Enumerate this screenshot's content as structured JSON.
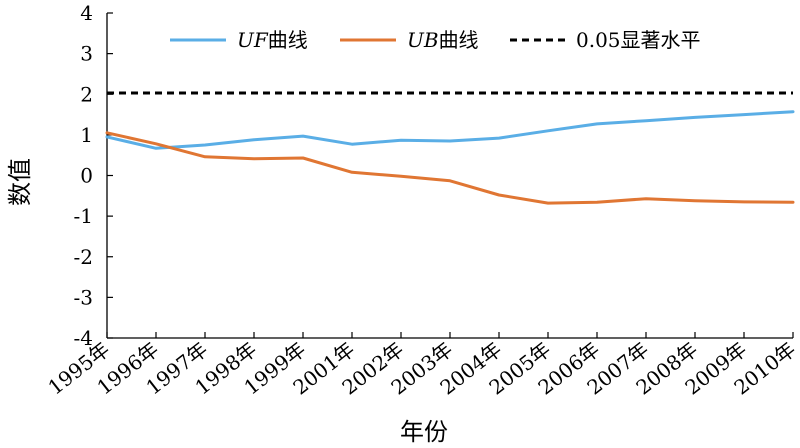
{
  "chart_data": {
    "type": "line",
    "title": "",
    "xlabel": "年份",
    "ylabel": "数值",
    "ylim": [
      -4,
      4
    ],
    "yticks": [
      "4",
      "3",
      "2",
      "1",
      "0",
      "-1",
      "-2",
      "-3",
      "-4"
    ],
    "categories": [
      "1995年",
      "1996年",
      "1997年",
      "1998年",
      "1999年",
      "2001年",
      "2002年",
      "2003年",
      "2004年",
      "2005年",
      "2006年",
      "2007年",
      "2008年",
      "2009年",
      "2010年"
    ],
    "series": [
      {
        "name": "UF曲线",
        "name_italic": "UF",
        "name_rest": "曲线",
        "color": "#5aaee6",
        "style": "solid",
        "values": [
          0.95,
          0.67,
          0.75,
          0.88,
          0.97,
          0.77,
          0.87,
          0.85,
          0.92,
          1.1,
          1.27,
          1.35,
          1.43,
          1.5,
          1.57
        ]
      },
      {
        "name": "UB曲线",
        "name_italic": "UB",
        "name_rest": "曲线",
        "color": "#e07633",
        "style": "solid",
        "values": [
          1.05,
          0.78,
          0.46,
          0.41,
          0.43,
          0.08,
          -0.02,
          -0.13,
          -0.48,
          -0.68,
          -0.66,
          -0.57,
          -0.62,
          -0.65,
          -0.66
        ]
      },
      {
        "name": "0.05显著水平",
        "color": "#000000",
        "style": "dashed",
        "values": [
          2.03,
          2.03,
          2.03,
          2.03,
          2.03,
          2.03,
          2.03,
          2.03,
          2.03,
          2.03,
          2.03,
          2.03,
          2.03,
          2.03,
          2.03
        ]
      }
    ],
    "legend_position": "top",
    "grid": false
  }
}
